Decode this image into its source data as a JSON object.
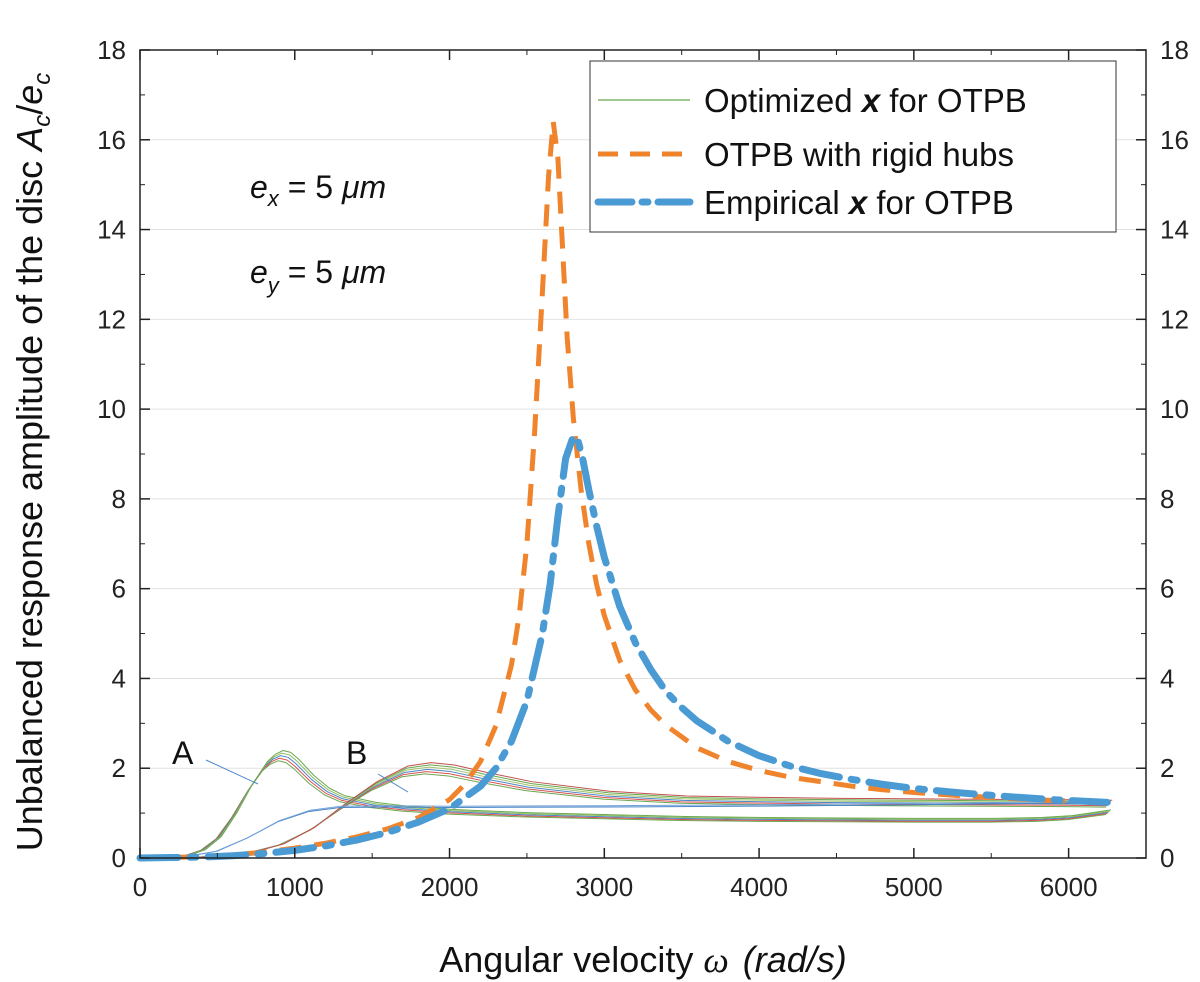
{
  "chart_data": {
    "type": "line",
    "xlabel_prefix": "Angular velocity ",
    "xlabel_symbol": "ω",
    "xlabel_units": "(rad/s)",
    "ylabel_prefix": "Unbalanced response amplitude of the disc ",
    "ylabel_symbol": "A",
    "ylabel_sub1": "c",
    "ylabel_slash": "/",
    "ylabel_symbol2": "e",
    "ylabel_sub2": "c",
    "xlim": [
      0,
      6500
    ],
    "ylim": [
      0,
      18
    ],
    "xticks": [
      0,
      1000,
      2000,
      3000,
      4000,
      5000,
      6000
    ],
    "yticks": [
      0,
      2,
      4,
      6,
      8,
      10,
      12,
      14,
      16,
      18
    ],
    "x_tick_labels": [
      "0",
      "1000",
      "2000",
      "3000",
      "4000",
      "5000",
      "6000"
    ],
    "y_tick_labels": [
      "0",
      "2",
      "4",
      "6",
      "8",
      "10",
      "12",
      "14",
      "16",
      "18"
    ],
    "y2_tick_labels": [
      "0",
      "2",
      "4",
      "6",
      "8",
      "10",
      "12",
      "14",
      "16",
      "18"
    ],
    "grid": "horizontal",
    "legend_position": "top-right",
    "legend": {
      "optimized": {
        "pre": "Optimized ",
        "var": "x",
        "post": " for OTPB"
      },
      "rigid": {
        "text": "OTPB with rigid hubs"
      },
      "empirical": {
        "pre": "Empirical ",
        "var": "x",
        "post": " for OTPB"
      }
    },
    "annotations": {
      "ex": {
        "var": "e",
        "sub": "x",
        "mid": " = 5 ",
        "unit": "μm"
      },
      "ey": {
        "var": "e",
        "sub": "y",
        "mid": " = 5 ",
        "unit": "μm"
      },
      "label_A": "A",
      "label_B": "B"
    },
    "series": [
      {
        "name": "OTPB with rigid hubs",
        "style": "dashed",
        "color": "#f0842c",
        "x": [
          0,
          200,
          400,
          600,
          800,
          1000,
          1200,
          1400,
          1600,
          1800,
          2000,
          2100,
          2200,
          2300,
          2400,
          2450,
          2500,
          2550,
          2600,
          2640,
          2670,
          2700,
          2730,
          2760,
          2800,
          2850,
          2900,
          2950,
          3000,
          3100,
          3200,
          3300,
          3400,
          3600,
          3800,
          4000,
          4200,
          4400,
          4600,
          4800,
          5000,
          5300,
          5600,
          5900,
          6250
        ],
        "y": [
          0.0,
          0.01,
          0.03,
          0.07,
          0.13,
          0.22,
          0.33,
          0.47,
          0.65,
          0.9,
          1.3,
          1.65,
          2.15,
          2.95,
          4.3,
          5.4,
          7.0,
          9.5,
          12.6,
          15.2,
          16.4,
          15.6,
          13.6,
          11.6,
          9.8,
          8.2,
          7.0,
          6.1,
          5.4,
          4.4,
          3.75,
          3.3,
          2.95,
          2.45,
          2.15,
          1.95,
          1.8,
          1.7,
          1.6,
          1.52,
          1.46,
          1.39,
          1.33,
          1.28,
          1.24
        ]
      },
      {
        "name": "Empirical x for OTPB",
        "style": "dashdot",
        "color": "#4a9ad4",
        "x": [
          0,
          200,
          400,
          600,
          800,
          1000,
          1200,
          1400,
          1600,
          1800,
          2000,
          2200,
          2300,
          2400,
          2500,
          2600,
          2650,
          2700,
          2750,
          2800,
          2830,
          2860,
          2900,
          2950,
          3000,
          3100,
          3200,
          3300,
          3400,
          3500,
          3600,
          3800,
          4000,
          4200,
          4400,
          4600,
          4800,
          5000,
          5300,
          5600,
          5900,
          6250
        ],
        "y": [
          0.0,
          0.01,
          0.02,
          0.05,
          0.1,
          0.17,
          0.27,
          0.4,
          0.57,
          0.8,
          1.1,
          1.6,
          2.0,
          2.6,
          3.5,
          5.0,
          6.1,
          7.6,
          8.9,
          9.4,
          9.3,
          8.9,
          8.2,
          7.4,
          6.7,
          5.6,
          4.8,
          4.2,
          3.7,
          3.35,
          3.05,
          2.6,
          2.28,
          2.05,
          1.88,
          1.75,
          1.64,
          1.55,
          1.45,
          1.37,
          1.3,
          1.24
        ]
      },
      {
        "name": "Optimized x for OTPB",
        "style": "thin",
        "color": "#6aa84f",
        "group": "A-peak",
        "x": [
          0,
          200,
          300,
          400,
          500,
          600,
          700,
          800,
          850,
          900,
          950,
          1000,
          1100,
          1200,
          1300,
          1500,
          1700,
          2000,
          2500,
          3000,
          3500,
          4000,
          4500,
          5000,
          5500,
          5800,
          6000,
          6250
        ],
        "y": [
          0.0,
          0.02,
          0.06,
          0.18,
          0.45,
          0.95,
          1.55,
          2.05,
          2.2,
          2.28,
          2.24,
          2.1,
          1.75,
          1.48,
          1.32,
          1.18,
          1.1,
          1.03,
          0.96,
          0.92,
          0.88,
          0.86,
          0.85,
          0.84,
          0.84,
          0.86,
          0.9,
          1.02
        ]
      },
      {
        "name": "Optimized x for OTPB (B)",
        "style": "thin",
        "color": "#6aa84f",
        "group": "B-peak",
        "x": [
          0,
          300,
          500,
          700,
          900,
          1100,
          1300,
          1500,
          1700,
          1850,
          2000,
          2200,
          2500,
          3000,
          3500,
          4000,
          4500,
          5000,
          5500,
          6000,
          6250
        ],
        "y": [
          0.0,
          0.01,
          0.04,
          0.12,
          0.3,
          0.65,
          1.15,
          1.6,
          1.93,
          2.0,
          1.95,
          1.8,
          1.6,
          1.4,
          1.3,
          1.27,
          1.25,
          1.24,
          1.23,
          1.22,
          1.21
        ]
      },
      {
        "name": "Optimized x for OTPB (flat)",
        "style": "thin",
        "color": "#4a86c8",
        "group": "flat",
        "x": [
          0,
          300,
          500,
          700,
          900,
          1100,
          1300,
          1600,
          2000,
          3000,
          4000,
          5000,
          6000,
          6250
        ],
        "y": [
          0.0,
          0.03,
          0.15,
          0.45,
          0.82,
          1.05,
          1.14,
          1.15,
          1.14,
          1.15,
          1.17,
          1.2,
          1.24,
          1.27
        ]
      }
    ]
  }
}
